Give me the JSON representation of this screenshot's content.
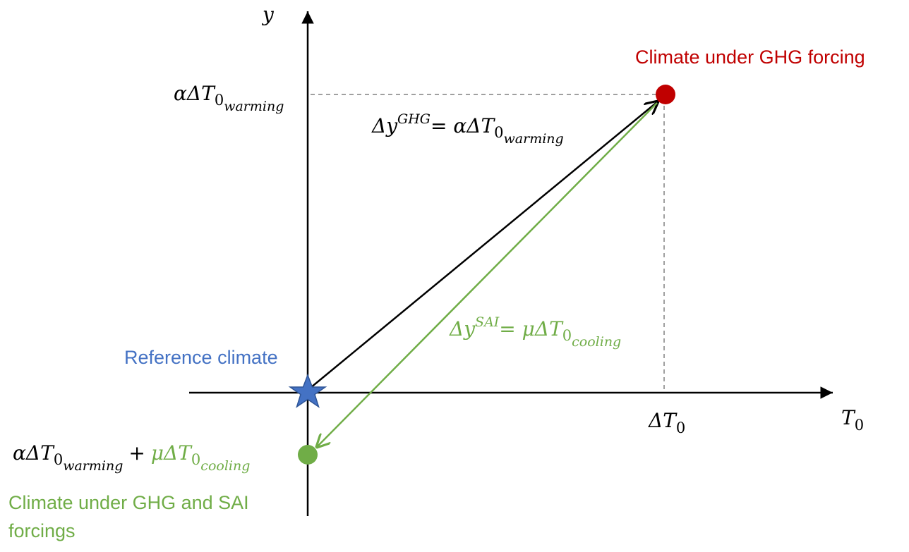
{
  "axes": {
    "y_label": "y",
    "x_label": "T",
    "x_label_sub": "0",
    "x_tick": "ΔT",
    "x_tick_sub": "0",
    "y_tick": "αΔT",
    "y_tick_sub": "0",
    "y_tick_subsub": "warming"
  },
  "points": {
    "reference": {
      "label": "Reference climate",
      "marker": "star",
      "color": "#4472C4"
    },
    "ghg": {
      "label": "Climate under GHG forcing",
      "marker": "circle",
      "color": "#C00000"
    },
    "ghg_sai": {
      "label_line1": "Climate under GHG and SAI",
      "label_line2": "forcings",
      "marker": "circle",
      "color": "#70AD47"
    }
  },
  "equations": {
    "ghg": {
      "lhs": "Δy",
      "sup": "GHG",
      "eq": "= αΔT",
      "sub": "0",
      "subsub": "warming",
      "color": "#000000"
    },
    "sai": {
      "lhs": "Δy",
      "sup": "SAI",
      "eq": "= μΔT",
      "sub": "0",
      "subsub": "cooling",
      "color": "#70AD47"
    },
    "combined": {
      "part1": "αΔT",
      "part1_sub": "0",
      "part1_subsub": "warming",
      "plus": "+",
      "part2": "μΔT",
      "part2_sub": "0",
      "part2_subsub": "cooling"
    }
  },
  "colors": {
    "axis": "#000000",
    "guide": "#808080",
    "black_arrow": "#000000",
    "green_arrow": "#70AD47"
  }
}
